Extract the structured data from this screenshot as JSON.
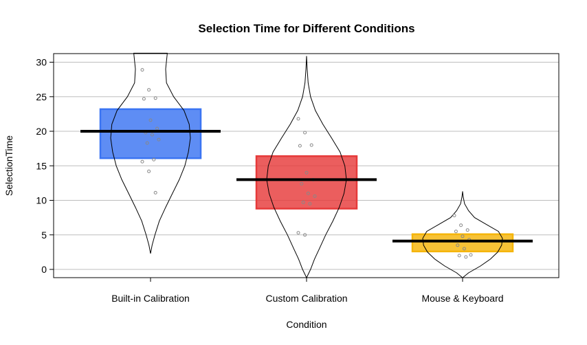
{
  "chart_data": {
    "type": "pirate",
    "title": "Selection Time for Different Conditions",
    "xlabel": "Condition",
    "ylabel": "SelectionTime",
    "ylim": [
      -1.2,
      31.3
    ],
    "yticks": [
      0,
      5,
      10,
      15,
      20,
      25,
      30
    ],
    "grid": true,
    "categories": [
      "Built-in Calibration",
      "Custom Calibration",
      "Mouse & Keyboard"
    ],
    "groups": [
      {
        "name": "Built-in Calibration",
        "color": "#3a74f2",
        "mean": 20.0,
        "ci_low": 16.1,
        "ci_high": 23.2,
        "points": [
          28.9,
          26.0,
          24.8,
          24.7,
          21.6,
          20.4,
          19.8,
          19.5,
          18.8,
          18.3,
          15.9,
          15.6,
          14.2,
          11.1
        ],
        "density": {
          "y": [
            2.3,
            3.5,
            5.0,
            7.0,
            9.0,
            11.0,
            13.0,
            15.0,
            17.0,
            19.0,
            21.0,
            23.0,
            25.0,
            27.0,
            29.0,
            31.3
          ],
          "w": [
            0.0,
            0.04,
            0.11,
            0.22,
            0.38,
            0.55,
            0.72,
            0.86,
            0.95,
            1.0,
            0.97,
            0.84,
            0.58,
            0.4,
            0.38,
            0.42
          ]
        }
      },
      {
        "name": "Custom Calibration",
        "color": "#e63a3a",
        "mean": 13.0,
        "ci_low": 8.8,
        "ci_high": 16.4,
        "points": [
          21.8,
          19.8,
          18.0,
          17.9,
          14.0,
          13.0,
          12.4,
          11.0,
          10.6,
          9.7,
          9.5,
          5.3,
          5.0
        ],
        "density": {
          "y": [
            -1.2,
            0.0,
            1.5,
            3.0,
            5.0,
            7.0,
            9.0,
            11.0,
            13.0,
            15.0,
            17.0,
            19.0,
            21.0,
            23.0,
            25.0,
            27.0,
            29.0,
            30.9
          ],
          "w": [
            0.0,
            0.1,
            0.2,
            0.32,
            0.48,
            0.66,
            0.82,
            0.94,
            1.0,
            0.96,
            0.84,
            0.63,
            0.41,
            0.22,
            0.1,
            0.04,
            0.015,
            0.0
          ]
        }
      },
      {
        "name": "Mouse & Keyboard",
        "color": "#f5b50a",
        "mean": 4.1,
        "ci_low": 2.6,
        "ci_high": 5.1,
        "points": [
          7.8,
          6.4,
          5.7,
          5.5,
          4.8,
          4.3,
          3.5,
          3.0,
          2.1,
          2.0,
          1.8
        ],
        "density": {
          "y": [
            -1.2,
            -0.5,
            0.5,
            1.5,
            2.5,
            3.5,
            4.5,
            5.5,
            6.5,
            7.5,
            8.5,
            9.5,
            10.5,
            11.3
          ],
          "w": [
            0.0,
            0.15,
            0.45,
            0.7,
            0.88,
            0.98,
            1.0,
            0.9,
            0.6,
            0.3,
            0.15,
            0.05,
            0.015,
            0.0
          ]
        }
      }
    ]
  }
}
